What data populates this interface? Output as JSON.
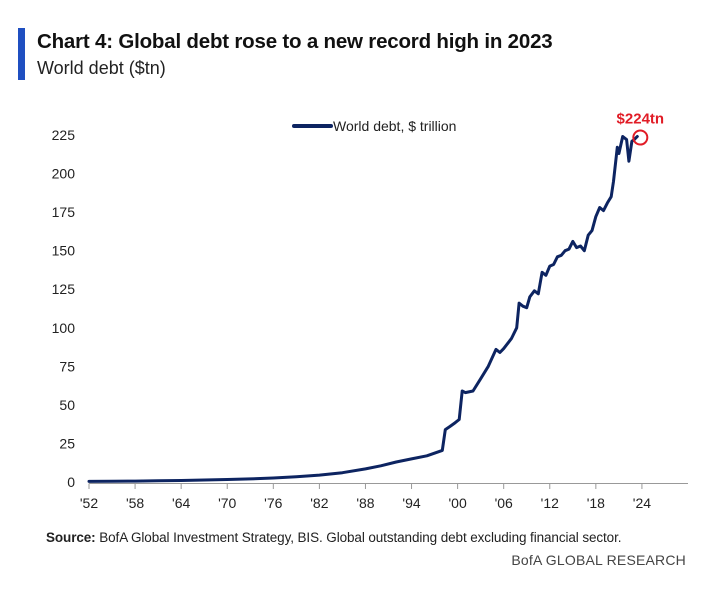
{
  "header": {
    "title": "Chart 4: Global debt rose to a new record high in 2023",
    "subtitle": "World debt ($tn)"
  },
  "footer": {
    "source_label": "Source:",
    "source_text": " BofA Global Investment Strategy, BIS. Global outstanding debt excluding financial sector.",
    "brand": "BofA GLOBAL RESEARCH"
  },
  "colors": {
    "accent": "#1f4fc1",
    "series": "#0d2461",
    "annotation": "#e11c26",
    "axis": "#999999"
  },
  "chart_data": {
    "type": "line",
    "title": "Chart 4: Global debt rose to a new record high in 2023",
    "subtitle": "World debt ($tn)",
    "xlabel": "",
    "ylabel": "",
    "xlim": [
      1952,
      2030
    ],
    "ylim": [
      0,
      225
    ],
    "x_tick_values": [
      1952,
      1958,
      1964,
      1970,
      1976,
      1982,
      1988,
      1994,
      2000,
      2006,
      2012,
      2018,
      2024
    ],
    "x_tick_labels": [
      "'52",
      "'58",
      "'64",
      "'70",
      "'76",
      "'82",
      "'88",
      "'94",
      "'00",
      "'06",
      "'12",
      "'18",
      "'24"
    ],
    "y_ticks": [
      0,
      25,
      50,
      75,
      100,
      125,
      150,
      175,
      200,
      225
    ],
    "grid": false,
    "legend": "top-center",
    "series": [
      {
        "name": "World debt, $ trillion",
        "x": [
          1952,
          1955,
          1958,
          1961,
          1964,
          1967,
          1970,
          1973,
          1976,
          1979,
          1982,
          1985,
          1988,
          1990,
          1992,
          1994,
          1996,
          1998,
          1998.4,
          1999,
          1999.7,
          2000.2,
          2000.6,
          2001,
          2002,
          2003,
          2004,
          2005,
          2005.5,
          2006,
          2007,
          2007.7,
          2008,
          2008.5,
          2009,
          2009.4,
          2010,
          2010.5,
          2011,
          2011.5,
          2012,
          2012.5,
          2013,
          2013.5,
          2014,
          2014.5,
          2015,
          2015.5,
          2016,
          2016.5,
          2017,
          2017.5,
          2018,
          2018.5,
          2019,
          2019.5,
          2020,
          2020.3,
          2020.8,
          2021,
          2021.5,
          2022,
          2022.3,
          2022.7,
          2023,
          2023.4
        ],
        "y": [
          0.4,
          0.5,
          0.6,
          0.8,
          1.0,
          1.3,
          1.6,
          2.0,
          2.6,
          3.4,
          4.5,
          6.0,
          8.5,
          10.5,
          13.0,
          15.0,
          17.0,
          20.5,
          34.0,
          36.0,
          38.5,
          40.5,
          59.0,
          58.0,
          59.0,
          67.0,
          75.0,
          86.0,
          84.0,
          86.5,
          93.0,
          100.0,
          116.0,
          114.0,
          113.0,
          120.0,
          124.0,
          122.0,
          136.0,
          134.0,
          140.0,
          141.0,
          146.0,
          147.0,
          150.0,
          151.0,
          156.0,
          152.0,
          153.0,
          150.0,
          160.0,
          163.0,
          172.0,
          178.0,
          176.0,
          181.0,
          185.0,
          195.0,
          217.0,
          213.0,
          224.0,
          222.0,
          208.0,
          221.0,
          222.0,
          224.0
        ]
      }
    ],
    "annotations": [
      {
        "text": "$224tn",
        "x": 2023.4,
        "y": 224
      }
    ]
  }
}
